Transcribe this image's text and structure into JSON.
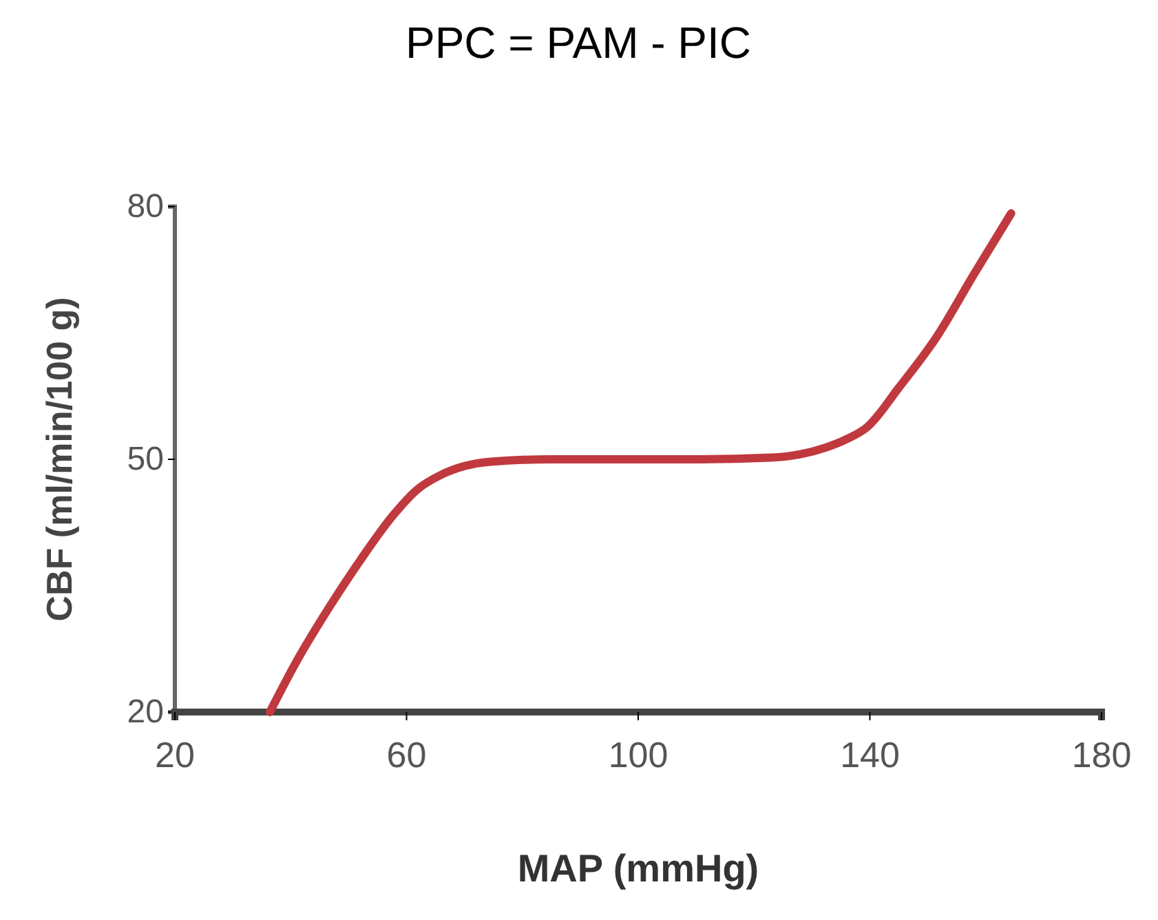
{
  "chart_data": {
    "type": "line",
    "title": "PPC = PAM - PIC",
    "xlabel": "MAP (mmHg)",
    "ylabel": "CBF (ml/min/100 g)",
    "x": [
      36.4,
      41,
      46.8,
      52,
      57.5,
      62,
      65.8,
      70,
      74.2,
      84.8,
      97,
      108.6,
      122.9,
      128,
      132.4,
      136,
      139.5,
      145,
      151.4,
      158,
      164.4
    ],
    "series": [
      {
        "color": "#c0393f",
        "values": [
          20,
          26,
          32.6,
          38,
          43.2,
          46.5,
          48.1,
          49.2,
          49.7,
          50,
          50,
          50,
          50.2,
          50.6,
          51.4,
          52.4,
          53.8,
          58.5,
          64.4,
          72,
          79.2
        ]
      }
    ],
    "xlim": [
      20,
      180
    ],
    "xticks": [
      20,
      60,
      100,
      140,
      180
    ],
    "ylim": [
      20,
      80
    ],
    "yticks": [
      20,
      50,
      80
    ],
    "grid": false,
    "marker": "none",
    "line_style": "solid"
  }
}
